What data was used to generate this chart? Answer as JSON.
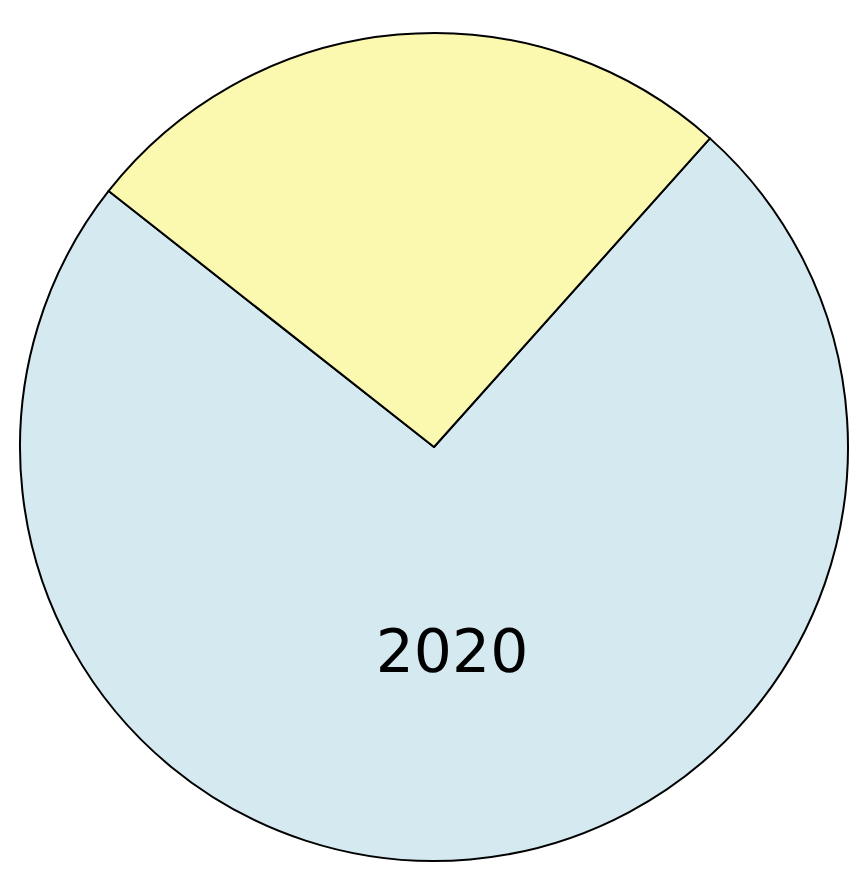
{
  "chart_data": {
    "type": "pie",
    "categories": [
      "2020",
      null
    ],
    "values": [
      74,
      26
    ],
    "colors": [
      "#d4e9f0",
      "#fbf8b0"
    ],
    "legend": false
  }
}
